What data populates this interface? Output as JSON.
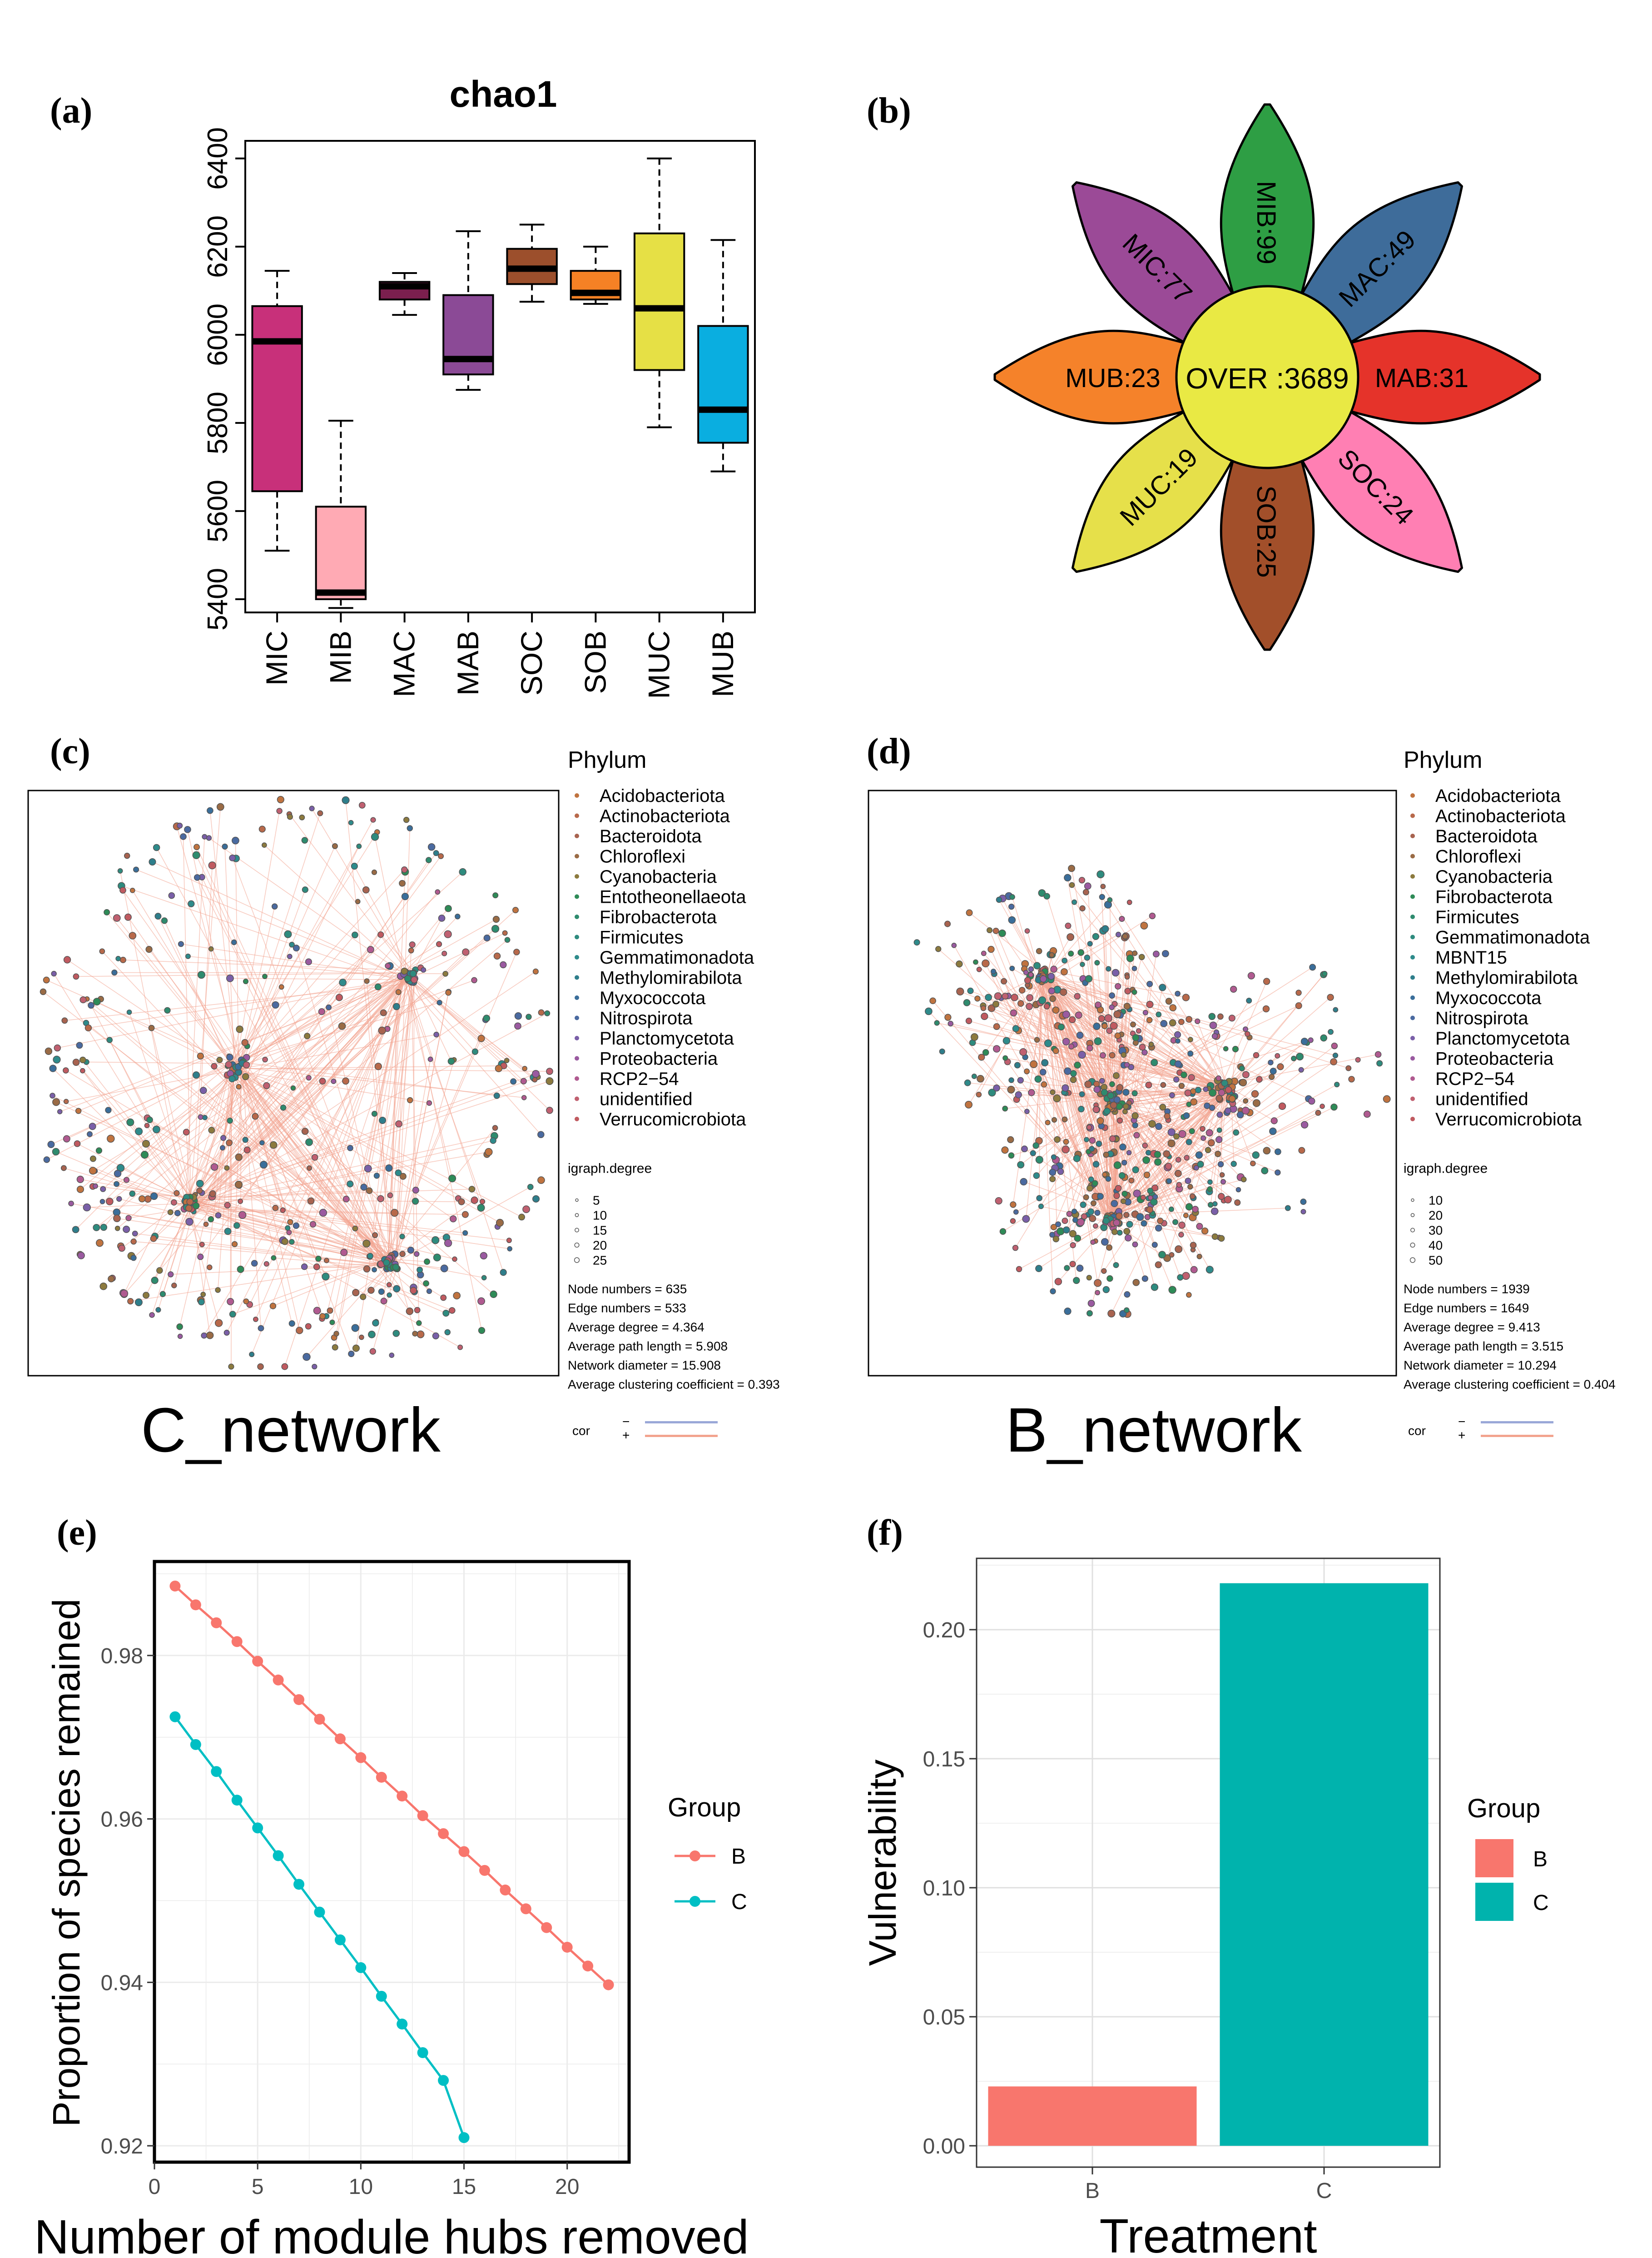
{
  "chart_data": [
    {
      "id": "a",
      "panel_label": "(a)",
      "type": "box",
      "title": "chao1",
      "xlabel": "",
      "ylabel": "",
      "categories": [
        "MIC",
        "MIB",
        "MAC",
        "MAB",
        "SOC",
        "SOB",
        "MUC",
        "MUB"
      ],
      "colors": [
        "#C8307A",
        "#FFAAB4",
        "#7B1F4E",
        "#8B4A96",
        "#9C4F2C",
        "#F58125",
        "#E6E045",
        "#0AAEE0"
      ],
      "boxes": [
        {
          "min": 5510,
          "q1": 5645,
          "median": 5985,
          "q3": 6065,
          "max": 6145
        },
        {
          "min": 5380,
          "q1": 5400,
          "median": 5415,
          "q3": 5610,
          "max": 5805
        },
        {
          "min": 6045,
          "q1": 6080,
          "median": 6110,
          "q3": 6120,
          "max": 6140
        },
        {
          "min": 5875,
          "q1": 5910,
          "median": 5945,
          "q3": 6090,
          "max": 6235
        },
        {
          "min": 6075,
          "q1": 6115,
          "median": 6150,
          "q3": 6195,
          "max": 6250
        },
        {
          "min": 6070,
          "q1": 6080,
          "median": 6095,
          "q3": 6145,
          "max": 6200
        },
        {
          "min": 5790,
          "q1": 5920,
          "median": 6060,
          "q3": 6230,
          "max": 6400
        },
        {
          "min": 5690,
          "q1": 5755,
          "median": 5830,
          "q3": 6020,
          "max": 6215
        }
      ],
      "yticks": [
        5400,
        5600,
        5800,
        6000,
        6200,
        6400
      ],
      "ylim": [
        5370,
        6440
      ]
    },
    {
      "id": "b",
      "panel_label": "(b)",
      "type": "flower",
      "center_label": "OVER :3689",
      "petals": [
        {
          "label": "MIB:99",
          "color": "#2E9E44"
        },
        {
          "label": "MAC:49",
          "color": "#3E6C9A"
        },
        {
          "label": "MAB:31",
          "color": "#E5332A"
        },
        {
          "label": "SOC:24",
          "color": "#FF7FB3"
        },
        {
          "label": "SOB:25",
          "color": "#A24F2A"
        },
        {
          "label": "MUC:19",
          "color": "#E6E04A"
        },
        {
          "label": "MUB:23",
          "color": "#F5822A"
        },
        {
          "label": "MIC:77",
          "color": "#9B4A97"
        }
      ]
    },
    {
      "id": "c",
      "panel_label": "(c)",
      "type": "network",
      "title": "C_network",
      "legend_title": "Phylum",
      "phyla": [
        "Acidobacteriota",
        "Actinobacteriota",
        "Bacteroidota",
        "Chloroflexi",
        "Cyanobacteria",
        "Entotheonellaeota",
        "Fibrobacterota",
        "Firmicutes",
        "Gemmatimonadota",
        "Methylomirabilota",
        "Myxococcota",
        "Nitrospirota",
        "Planctomycetota",
        "Proteobacteria",
        "RCP2−54",
        "unidentified",
        "Verrucomicrobiota"
      ],
      "phyla_colors": [
        "#C0733F",
        "#B8694A",
        "#A8634F",
        "#9A6B45",
        "#8C7A3E",
        "#2E8B57",
        "#2E8B6E",
        "#2E8B7E",
        "#2E8B8B",
        "#2E7E8B",
        "#3A6E9A",
        "#4A6AA0",
        "#7A5FA8",
        "#9A5AA0",
        "#B05A90",
        "#C06070",
        "#C05A60"
      ],
      "degree_title": "igraph.degree",
      "degree_values": [
        "5",
        "10",
        "15",
        "20",
        "25"
      ],
      "stats": [
        "Node numbers = 635",
        "Edge numbers = 533",
        "Average degree = 4.364",
        "Average path length = 5.908",
        "Network diameter = 15.908",
        "Average clustering coefficient = 0.393"
      ],
      "cor_title": "cor",
      "cor_labels": [
        "−",
        "+"
      ],
      "cor_colors": [
        "#9AA8D8",
        "#F2A38E"
      ]
    },
    {
      "id": "d",
      "panel_label": "(d)",
      "type": "network",
      "title": "B_network",
      "legend_title": "Phylum",
      "phyla": [
        "Acidobacteriota",
        "Actinobacteriota",
        "Bacteroidota",
        "Chloroflexi",
        "Cyanobacteria",
        "Fibrobacterota",
        "Firmicutes",
        "Gemmatimonadota",
        "MBNT15",
        "Methylomirabilota",
        "Myxococcota",
        "Nitrospirota",
        "Planctomycetota",
        "Proteobacteria",
        "RCP2−54",
        "unidentified",
        "Verrucomicrobiota"
      ],
      "phyla_colors": [
        "#C0733F",
        "#B8694A",
        "#A8634F",
        "#9A6B45",
        "#8C7A3E",
        "#2E8B57",
        "#2E8B6E",
        "#2E8B7E",
        "#2E8B8B",
        "#2E7E8B",
        "#3A6E9A",
        "#4A6AA0",
        "#7A5FA8",
        "#9A5AA0",
        "#B05A90",
        "#C06070",
        "#C05A60"
      ],
      "degree_title": "igraph.degree",
      "degree_values": [
        "10",
        "20",
        "30",
        "40",
        "50"
      ],
      "stats": [
        "Node numbers = 1939",
        "Edge numbers = 1649",
        "Average degree = 9.413",
        "Average path length = 3.515",
        "Network diameter = 10.294",
        "Average clustering coefficient = 0.404"
      ],
      "cor_title": "cor",
      "cor_labels": [
        "−",
        "+"
      ],
      "cor_colors": [
        "#9AA8D8",
        "#F2A38E"
      ]
    },
    {
      "id": "e",
      "panel_label": "(e)",
      "type": "line",
      "xlabel": "Number of module hubs removed",
      "ylabel": "Proportion of species remained",
      "xlim": [
        0,
        23
      ],
      "ylim": [
        0.918,
        0.9915
      ],
      "xticks": [
        0,
        5,
        10,
        15,
        20
      ],
      "yticks": [
        "0.92",
        "0.94",
        "0.96",
        "0.98"
      ],
      "legend_title": "Group",
      "series": [
        {
          "name": "B",
          "color": "#F8766D",
          "x": [
            1,
            2,
            3,
            4,
            5,
            6,
            7,
            8,
            9,
            10,
            11,
            12,
            13,
            14,
            15,
            16,
            17,
            18,
            19,
            20,
            21,
            22
          ],
          "y": [
            0.9885,
            0.9862,
            0.984,
            0.9817,
            0.9793,
            0.977,
            0.9746,
            0.9722,
            0.9698,
            0.9675,
            0.9651,
            0.9628,
            0.9604,
            0.9582,
            0.956,
            0.9537,
            0.9513,
            0.949,
            0.9467,
            0.9443,
            0.942,
            0.9397
          ]
        },
        {
          "name": "C",
          "color": "#00BFC4",
          "x": [
            1,
            2,
            3,
            4,
            5,
            6,
            7,
            8,
            9,
            10,
            11,
            12,
            13,
            14,
            15
          ],
          "y": [
            0.9725,
            0.9691,
            0.9658,
            0.9623,
            0.9589,
            0.9555,
            0.952,
            0.9486,
            0.9452,
            0.9418,
            0.9383,
            0.9349,
            0.9314,
            0.928,
            0.921
          ]
        }
      ]
    },
    {
      "id": "f",
      "panel_label": "(f)",
      "type": "bar",
      "xlabel": "Treatment",
      "ylabel": "Vulnerability",
      "categories": [
        "B",
        "C"
      ],
      "values": [
        0.023,
        0.218
      ],
      "colors": [
        "#F8766D",
        "#00B3AD"
      ],
      "ylim": [
        0,
        0.225
      ],
      "yticks": [
        "0.00",
        "0.05",
        "0.10",
        "0.15",
        "0.20"
      ],
      "legend_title": "Group"
    }
  ]
}
